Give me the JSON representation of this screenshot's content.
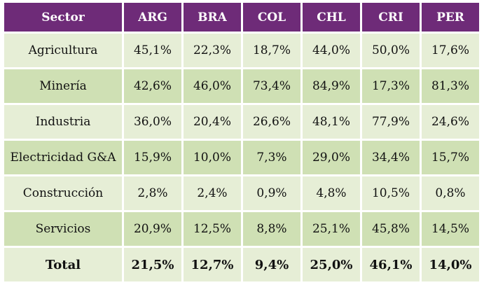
{
  "table": {
    "headers": [
      "Sector",
      "ARG",
      "BRA",
      "COL",
      "CHL",
      "CRI",
      "PER"
    ],
    "rows": [
      {
        "sector": "Agricultura",
        "values": [
          "45,1%",
          "22,3%",
          "18,7%",
          "44,0%",
          "50,0%",
          "17,6%"
        ]
      },
      {
        "sector": "Minería",
        "values": [
          "42,6%",
          "46,0%",
          "73,4%",
          "84,9%",
          "17,3%",
          "81,3%"
        ]
      },
      {
        "sector": "Industria",
        "values": [
          "36,0%",
          "20,4%",
          "26,6%",
          "48,1%",
          "77,9%",
          "24,6%"
        ]
      },
      {
        "sector": "Electricidad G&A",
        "values": [
          "15,9%",
          "10,0%",
          "7,3%",
          "29,0%",
          "34,4%",
          "15,7%"
        ]
      },
      {
        "sector": "Construcción",
        "values": [
          "2,8%",
          "2,4%",
          "0,9%",
          "4,8%",
          "10,5%",
          "0,8%"
        ]
      },
      {
        "sector": "Servicios",
        "values": [
          "20,9%",
          "12,5%",
          "8,8%",
          "25,1%",
          "45,8%",
          "14,5%"
        ]
      },
      {
        "sector": "Total",
        "values": [
          "21,5%",
          "12,7%",
          "9,4%",
          "25,0%",
          "46,1%",
          "14,0%"
        ]
      }
    ]
  },
  "colors": {
    "header_bg": "#6e2b78",
    "header_text": "#ffffff",
    "row_light": "#e6eed6",
    "row_dark": "#cfe0b4"
  }
}
